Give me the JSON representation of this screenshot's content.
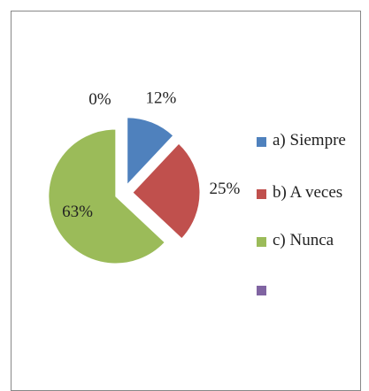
{
  "chart_data": {
    "type": "pie",
    "categories": [
      "a) Siempre",
      "b) A veces",
      "c) Nunca",
      null
    ],
    "values": [
      12,
      25,
      63,
      0
    ],
    "value_labels": [
      "12%",
      "25%",
      "63%",
      "0%"
    ],
    "colors": [
      "#4f81bd",
      "#c0504d",
      "#9bbb59",
      "#8064a2"
    ],
    "legend": "right"
  }
}
